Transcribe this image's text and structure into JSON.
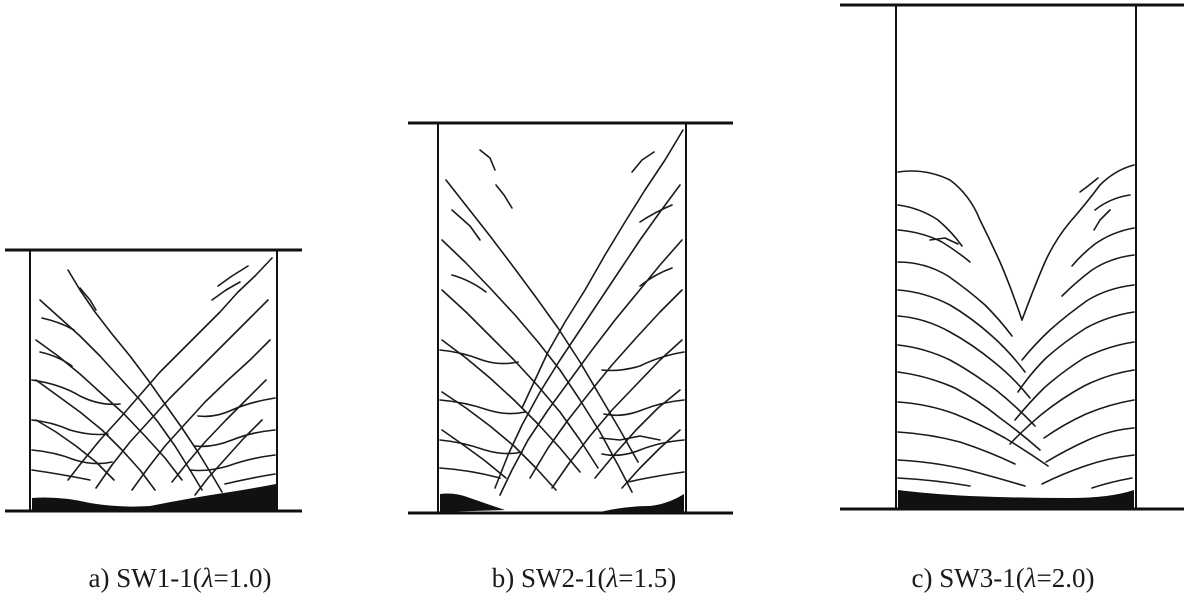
{
  "panels": [
    {
      "id": "a",
      "prefix": "a) SW1-1(",
      "lambda_symbol": "λ",
      "suffix": "=1.0)"
    },
    {
      "id": "b",
      "prefix": "b) SW2-1(",
      "lambda_symbol": "λ",
      "suffix": "=1.5)"
    },
    {
      "id": "c",
      "prefix": "c) SW3-1(",
      "lambda_symbol": "λ",
      "suffix": "=2.0)"
    }
  ]
}
